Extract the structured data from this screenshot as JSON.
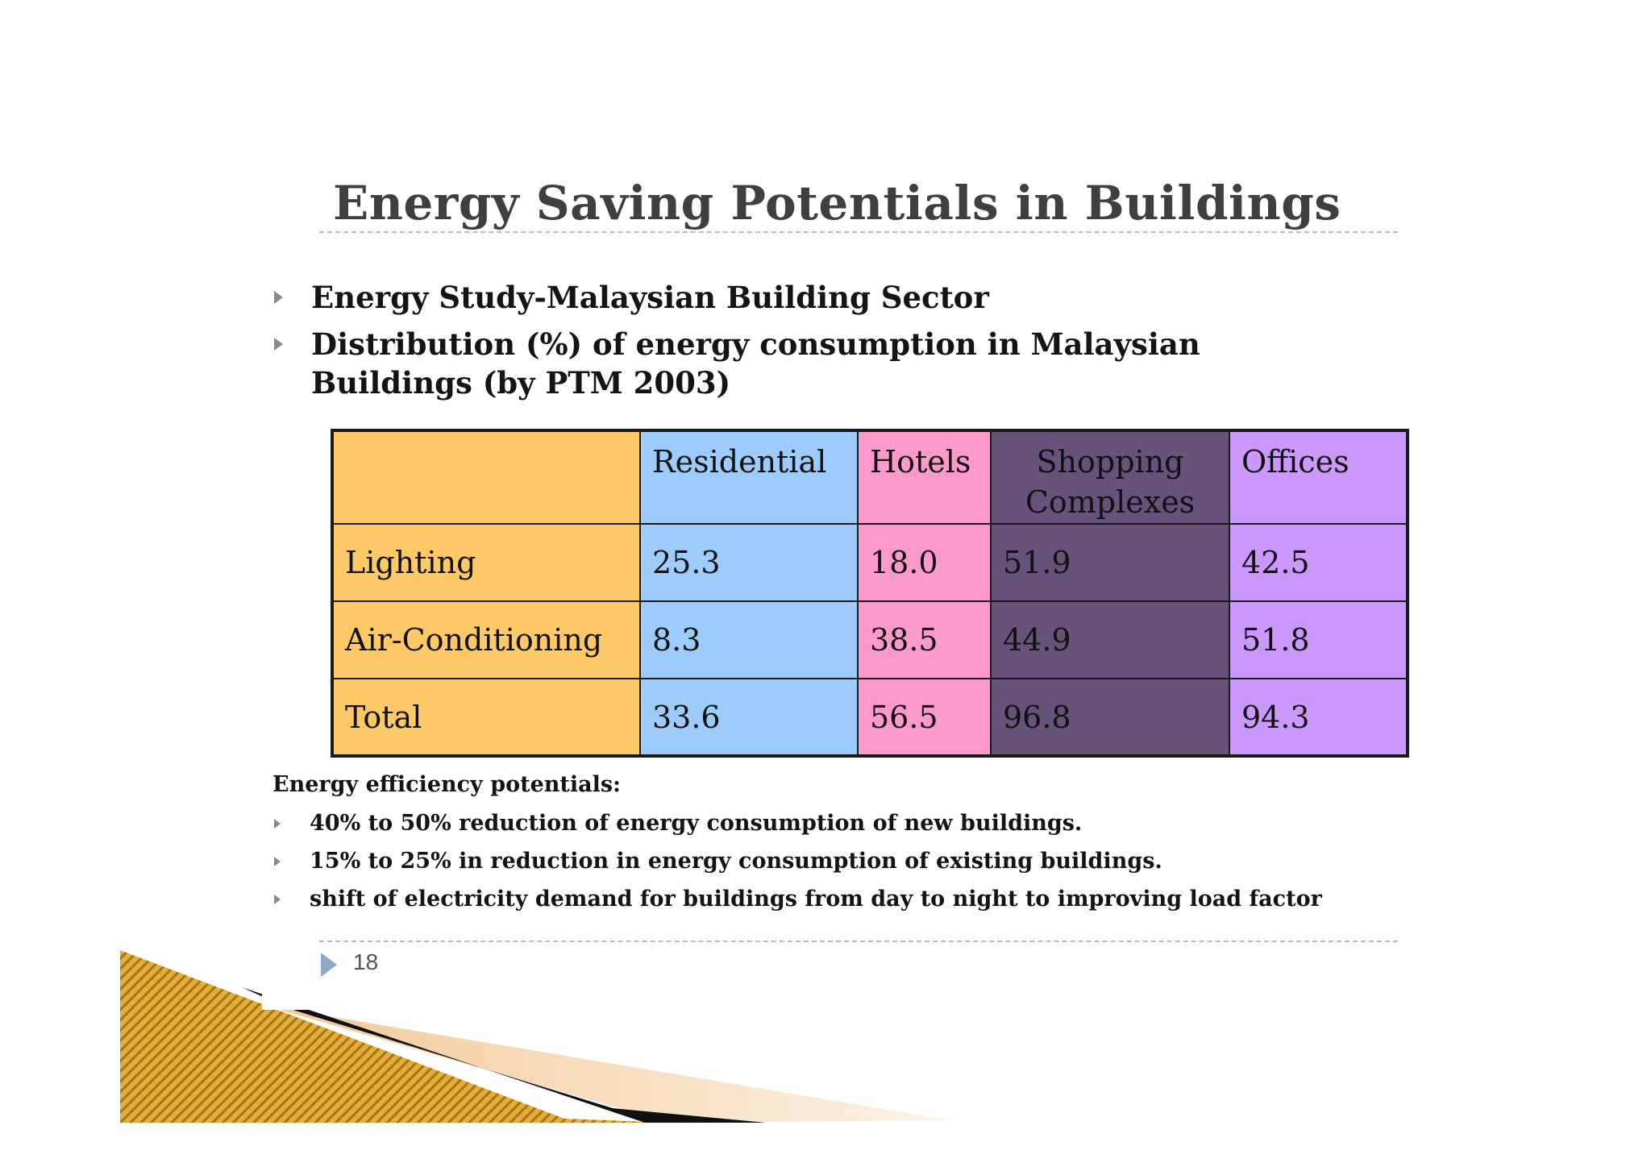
{
  "slide": {
    "title": "Energy Saving Potentials in Buildings",
    "bullets": [
      "Energy Study-Malaysian Building Sector",
      "Distribution (%) of energy consumption in Malaysian Buildings (by PTM 2003)"
    ],
    "table": {
      "headers": [
        "",
        "Residential",
        "Hotels",
        "Shopping Complexes",
        "Offices"
      ],
      "rows": [
        {
          "label": "Lighting",
          "values": [
            "25.3",
            "18.0",
            "51.9",
            "42.5"
          ]
        },
        {
          "label": "Air-Conditioning",
          "values": [
            "8.3",
            "38.5",
            "44.9",
            "51.8"
          ]
        },
        {
          "label": "Total",
          "values": [
            "33.6",
            "56.5",
            "96.8",
            "94.3"
          ]
        }
      ],
      "colors": {
        "label": "#fdc966",
        "residential": "#9dcbfb",
        "hotels": "#fe99cb",
        "shopping": "#67527a",
        "offices": "#cb99fd"
      }
    },
    "efficiency": {
      "heading": "Energy efficiency potentials:",
      "items": [
        "40% to 50% reduction of energy consumption of new buildings.",
        "15% to 25% in reduction in energy consumption of existing buildings.",
        "shift of electricity demand for buildings from day to night to  improving load factor"
      ]
    },
    "page_number": "18",
    "icons": {
      "bullet": "triangle-bullet-icon",
      "page": "triangle-page-icon"
    },
    "accent_colors": {
      "title": "#3f3f42",
      "rule": "#b9bcc6",
      "deco_gold": "#d9a12a",
      "deco_black": "#111111",
      "deco_peach": "#f6dcbd"
    }
  }
}
